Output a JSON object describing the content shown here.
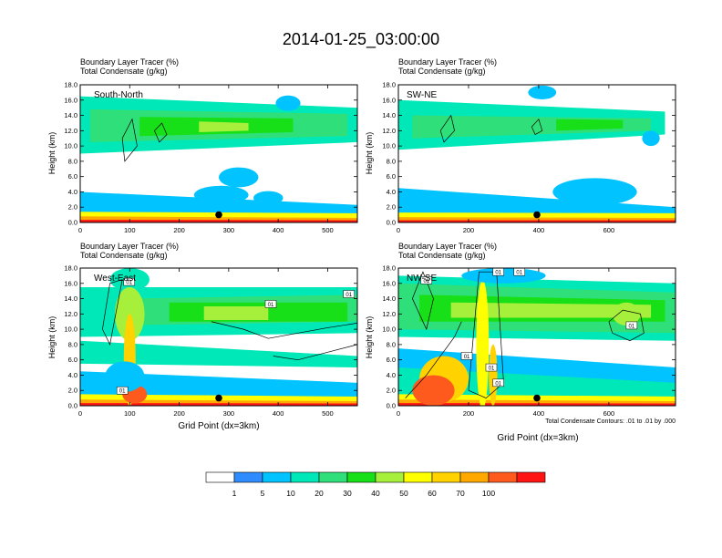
{
  "figure": {
    "title": "2014-01-25_03:00:00",
    "panel_header_lines": [
      "Boundary Layer Tracer    (%)",
      "Total Condensate    (g/kg)"
    ],
    "contour_note": "Total Condensate Contours: .01 to .01 by .000",
    "xlabel": "Grid Point (dx=3km)",
    "colorbar": {
      "labels": [
        "1",
        "5",
        "10",
        "20",
        "30",
        "40",
        "50",
        "60",
        "70",
        "100"
      ],
      "colors": [
        "#ffffff",
        "#2f8cff",
        "#00c3ff",
        "#00e8b8",
        "#2fe07a",
        "#18e018",
        "#a6f03c",
        "#ffff00",
        "#ffd200",
        "#ffa800",
        "#ff5a1e",
        "#ff1414"
      ]
    }
  },
  "chart_data": [
    {
      "type": "heatmap",
      "label": "South-North",
      "ylabel": "Height (km)",
      "ylim": [
        0,
        18
      ],
      "xlim": [
        0,
        560
      ],
      "xticks": [
        "0",
        "100",
        "200",
        "300",
        "400",
        "500"
      ],
      "yticks": [
        "0.0",
        "2.0",
        "4.0",
        "6.0",
        "8.0",
        "10.0",
        "12.0",
        "14.0",
        "16.0",
        "18.0"
      ],
      "marker": {
        "x": 280,
        "y": 1.0
      },
      "layers": [
        {
          "level": 3,
          "x": [
            0,
            560
          ],
          "y0": [
            9.0,
            10.5
          ],
          "y1": [
            16.5,
            15.0
          ]
        },
        {
          "level": 4,
          "x": [
            20,
            540
          ],
          "y0": [
            10.5,
            11.3
          ],
          "y1": [
            14.8,
            14.2
          ]
        },
        {
          "level": 5,
          "x": [
            120,
            430
          ],
          "y0": [
            11.3,
            11.8
          ],
          "y1": [
            13.8,
            13.6
          ]
        },
        {
          "level": 6,
          "x": [
            240,
            340
          ],
          "y0": [
            11.8,
            12.0
          ],
          "y1": [
            13.2,
            13.0
          ]
        },
        {
          "level": 2,
          "x": [
            0,
            560
          ],
          "y0": [
            0.3,
            0.3
          ],
          "y1": [
            4.0,
            2.3
          ]
        },
        {
          "level": 7,
          "x": [
            0,
            560
          ],
          "y0": [
            0.0,
            0.0
          ],
          "y1": [
            1.4,
            1.2
          ]
        },
        {
          "level": 9,
          "x": [
            0,
            560
          ],
          "y0": [
            0.0,
            0.0
          ],
          "y1": [
            0.8,
            0.6
          ]
        },
        {
          "level": 11,
          "x": [
            0,
            560
          ],
          "y0": [
            0.0,
            0.0
          ],
          "y1": [
            0.35,
            0.3
          ]
        }
      ],
      "blobs": [
        {
          "level": 2,
          "x": 285,
          "y": 3.6,
          "rx": 55,
          "ry": 1.2
        },
        {
          "level": 2,
          "x": 320,
          "y": 5.9,
          "rx": 40,
          "ry": 1.3
        },
        {
          "level": 2,
          "x": 380,
          "y": 3.2,
          "rx": 30,
          "ry": 0.9
        },
        {
          "level": 2,
          "x": 420,
          "y": 15.6,
          "rx": 25,
          "ry": 1.0
        }
      ],
      "contours": [
        {
          "x": [
            85,
            105,
            115,
            90,
            85
          ],
          "y": [
            11.0,
            13.5,
            10.0,
            8.0,
            11.0
          ]
        },
        {
          "x": [
            150,
            165,
            175,
            160,
            150
          ],
          "y": [
            12.0,
            13.0,
            11.5,
            10.5,
            12.0
          ]
        }
      ]
    },
    {
      "type": "heatmap",
      "label": "SW-NE",
      "ylabel": "Height (km)",
      "ylim": [
        0,
        18
      ],
      "xlim": [
        0,
        790
      ],
      "xticks": [
        "0",
        "200",
        "400",
        "600"
      ],
      "yticks": [
        "0.0",
        "2.0",
        "4.0",
        "6.0",
        "8.0",
        "10.0",
        "12.0",
        "14.0",
        "16.0",
        "18.0"
      ],
      "marker": {
        "x": 395,
        "y": 1.0
      },
      "layers": [
        {
          "level": 3,
          "x": [
            0,
            760
          ],
          "y0": [
            9.5,
            11.5
          ],
          "y1": [
            16.0,
            14.5
          ]
        },
        {
          "level": 4,
          "x": [
            40,
            720
          ],
          "y0": [
            11.0,
            12.0
          ],
          "y1": [
            14.0,
            13.6
          ]
        },
        {
          "level": 5,
          "x": [
            450,
            640
          ],
          "y0": [
            12.0,
            12.3
          ],
          "y1": [
            13.5,
            13.4
          ]
        },
        {
          "level": 2,
          "x": [
            0,
            790
          ],
          "y0": [
            0.3,
            0.3
          ],
          "y1": [
            4.5,
            2.0
          ]
        },
        {
          "level": 7,
          "x": [
            0,
            790
          ],
          "y0": [
            0.0,
            0.0
          ],
          "y1": [
            1.3,
            1.2
          ]
        },
        {
          "level": 9,
          "x": [
            0,
            790
          ],
          "y0": [
            0.0,
            0.0
          ],
          "y1": [
            0.7,
            0.6
          ]
        },
        {
          "level": 11,
          "x": [
            0,
            790
          ],
          "y0": [
            0.0,
            0.0
          ],
          "y1": [
            0.3,
            0.3
          ]
        }
      ],
      "blobs": [
        {
          "level": 2,
          "x": 560,
          "y": 4.0,
          "rx": 120,
          "ry": 1.8
        },
        {
          "level": 2,
          "x": 410,
          "y": 17.0,
          "rx": 40,
          "ry": 0.9
        },
        {
          "level": 2,
          "x": 720,
          "y": 11.0,
          "rx": 25,
          "ry": 1.0
        }
      ],
      "contours": [
        {
          "x": [
            120,
            150,
            160,
            130,
            120
          ],
          "y": [
            12.0,
            14.0,
            12.0,
            10.5,
            12.0
          ]
        },
        {
          "x": [
            380,
            400,
            410,
            390,
            380
          ],
          "y": [
            12.5,
            13.5,
            12.0,
            11.5,
            12.5
          ]
        }
      ]
    },
    {
      "type": "heatmap",
      "label": "West-East",
      "ylabel": "Height (km)",
      "ylim": [
        0,
        18
      ],
      "xlim": [
        0,
        560
      ],
      "xticks": [
        "0",
        "100",
        "200",
        "300",
        "400",
        "500"
      ],
      "yticks": [
        "0.0",
        "2.0",
        "4.0",
        "6.0",
        "8.0",
        "10.0",
        "12.0",
        "14.0",
        "16.0",
        "18.0"
      ],
      "marker": {
        "x": 280,
        "y": 1.0
      },
      "layers": [
        {
          "level": 3,
          "x": [
            0,
            560
          ],
          "y0": [
            9.0,
            9.5
          ],
          "y1": [
            15.5,
            15.5
          ]
        },
        {
          "level": 4,
          "x": [
            80,
            560
          ],
          "y0": [
            10.5,
            11.0
          ],
          "y1": [
            14.0,
            14.5
          ]
        },
        {
          "level": 5,
          "x": [
            180,
            540
          ],
          "y0": [
            11.0,
            11.0
          ],
          "y1": [
            13.5,
            13.5
          ]
        },
        {
          "level": 6,
          "x": [
            250,
            380
          ],
          "y0": [
            11.2,
            11.2
          ],
          "y1": [
            13.0,
            13.0
          ]
        },
        {
          "level": 2,
          "x": [
            0,
            560
          ],
          "y0": [
            0.5,
            0.5
          ],
          "y1": [
            4.5,
            3.0
          ]
        },
        {
          "level": 3,
          "x": [
            0,
            560
          ],
          "y0": [
            5.5,
            5.0
          ],
          "y1": [
            8.5,
            6.5
          ]
        },
        {
          "level": 7,
          "x": [
            0,
            560
          ],
          "y0": [
            0.0,
            0.0
          ],
          "y1": [
            1.5,
            1.2
          ]
        },
        {
          "level": 9,
          "x": [
            0,
            560
          ],
          "y0": [
            0.0,
            0.0
          ],
          "y1": [
            0.8,
            0.6
          ]
        },
        {
          "level": 11,
          "x": [
            0,
            560
          ],
          "y0": [
            0.0,
            0.0
          ],
          "y1": [
            0.35,
            0.3
          ]
        }
      ],
      "blobs": [
        {
          "level": 3,
          "x": 100,
          "y": 16.5,
          "rx": 40,
          "ry": 1.5
        },
        {
          "level": 6,
          "x": 100,
          "y": 12.0,
          "rx": 30,
          "ry": 3.5
        },
        {
          "level": 8,
          "x": 100,
          "y": 6.0,
          "rx": 12,
          "ry": 6.0
        },
        {
          "level": 10,
          "x": 110,
          "y": 1.5,
          "rx": 25,
          "ry": 1.2
        },
        {
          "level": 2,
          "x": 90,
          "y": 3.8,
          "rx": 40,
          "ry": 2.0
        }
      ],
      "contours": [
        {
          "x": [
            45,
            60,
            85,
            60,
            45
          ],
          "y": [
            10.0,
            16.0,
            16.5,
            8.0,
            10.0
          ]
        },
        {
          "x": [
            265,
            330,
            380,
            440,
            500,
            560
          ],
          "y": [
            11.0,
            10.0,
            8.8,
            9.5,
            10.2,
            10.8
          ]
        },
        {
          "x": [
            390,
            440,
            500,
            560
          ],
          "y": [
            6.5,
            6.0,
            7.0,
            8.0
          ]
        }
      ],
      "contour_labels": [
        {
          "x": 99,
          "y": 16.2,
          "text": "01"
        },
        {
          "x": 385,
          "y": 13.3,
          "text": "01"
        },
        {
          "x": 543,
          "y": 14.6,
          "text": "01"
        },
        {
          "x": 85,
          "y": 2.0,
          "text": "01"
        }
      ]
    },
    {
      "type": "heatmap",
      "label": "NW-SE",
      "ylabel": "Height (km)",
      "ylim": [
        0,
        18
      ],
      "xlim": [
        0,
        790
      ],
      "xticks": [
        "0",
        "200",
        "400",
        "600"
      ],
      "yticks": [
        "0.0",
        "2.0",
        "4.0",
        "6.0",
        "8.0",
        "10.0",
        "12.0",
        "14.0",
        "16.0",
        "18.0"
      ],
      "marker": {
        "x": 395,
        "y": 1.0
      },
      "layers": [
        {
          "level": 3,
          "x": [
            0,
            790
          ],
          "y0": [
            9.0,
            8.5
          ],
          "y1": [
            17.0,
            16.0
          ]
        },
        {
          "level": 4,
          "x": [
            0,
            790
          ],
          "y0": [
            10.0,
            9.5
          ],
          "y1": [
            16.0,
            14.8
          ]
        },
        {
          "level": 5,
          "x": [
            60,
            760
          ],
          "y0": [
            11.0,
            11.0
          ],
          "y1": [
            14.5,
            13.8
          ]
        },
        {
          "level": 6,
          "x": [
            150,
            720
          ],
          "y0": [
            11.5,
            11.5
          ],
          "y1": [
            13.5,
            13.2
          ]
        },
        {
          "level": 2,
          "x": [
            0,
            790
          ],
          "y0": [
            0.5,
            0.5
          ],
          "y1": [
            7.5,
            5.0
          ]
        },
        {
          "level": 3,
          "x": [
            0,
            790
          ],
          "y0": [
            0.5,
            0.5
          ],
          "y1": [
            5.0,
            3.0
          ]
        },
        {
          "level": 7,
          "x": [
            0,
            790
          ],
          "y0": [
            0.0,
            0.0
          ],
          "y1": [
            1.5,
            1.2
          ]
        },
        {
          "level": 9,
          "x": [
            0,
            790
          ],
          "y0": [
            0.0,
            0.0
          ],
          "y1": [
            0.8,
            0.6
          ]
        },
        {
          "level": 11,
          "x": [
            0,
            790
          ],
          "y0": [
            0.0,
            0.0
          ],
          "y1": [
            0.35,
            0.3
          ]
        }
      ],
      "blobs": [
        {
          "level": 8,
          "x": 130,
          "y": 3.5,
          "rx": 70,
          "ry": 3.0
        },
        {
          "level": 10,
          "x": 100,
          "y": 2.0,
          "rx": 60,
          "ry": 2.0
        },
        {
          "level": 7,
          "x": 240,
          "y": 8.0,
          "rx": 18,
          "ry": 8.5
        },
        {
          "level": 8,
          "x": 270,
          "y": 4.0,
          "rx": 12,
          "ry": 4.0
        },
        {
          "level": 2,
          "x": 300,
          "y": 17.0,
          "rx": 120,
          "ry": 1.0
        },
        {
          "level": 6,
          "x": 650,
          "y": 12.0,
          "rx": 40,
          "ry": 1.5
        }
      ],
      "contours": [
        {
          "x": [
            40,
            70,
            100,
            80,
            40
          ],
          "y": [
            14.0,
            17.5,
            14.0,
            10.0,
            14.0
          ]
        },
        {
          "x": [
            200,
            230,
            280,
            300,
            250,
            200
          ],
          "y": [
            2.0,
            17.5,
            17.5,
            3.0,
            1.0,
            2.0
          ]
        },
        {
          "x": [
            20,
            80,
            120,
            160,
            180
          ],
          "y": [
            1.0,
            4.0,
            6.5,
            9.0,
            11.0
          ]
        },
        {
          "x": [
            600,
            640,
            690,
            700,
            660,
            610,
            600
          ],
          "y": [
            11.0,
            12.5,
            12.0,
            9.5,
            8.5,
            9.5,
            11.0
          ]
        }
      ],
      "contour_labels": [
        {
          "x": 80,
          "y": 16.4,
          "text": "01"
        },
        {
          "x": 285,
          "y": 17.5,
          "text": "01"
        },
        {
          "x": 345,
          "y": 17.5,
          "text": "01"
        },
        {
          "x": 195,
          "y": 6.5,
          "text": "01"
        },
        {
          "x": 265,
          "y": 5.0,
          "text": "01"
        },
        {
          "x": 285,
          "y": 3.0,
          "text": "01"
        },
        {
          "x": 665,
          "y": 10.5,
          "text": "01"
        }
      ]
    }
  ]
}
